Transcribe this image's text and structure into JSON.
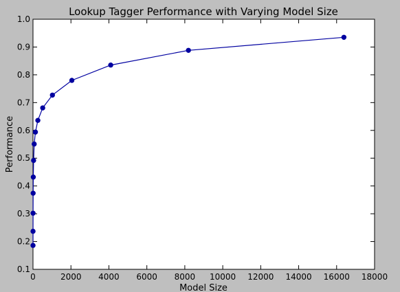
{
  "chart_data": {
    "type": "line",
    "title": "Lookup Tagger Performance with Varying Model Size",
    "xlabel": "Model Size",
    "ylabel": "Performance",
    "xlim": [
      0,
      18000
    ],
    "ylim": [
      0.1,
      1.0
    ],
    "grid": false,
    "legend": "none",
    "xticks": [
      0,
      2000,
      4000,
      6000,
      8000,
      10000,
      12000,
      14000,
      16000,
      18000
    ],
    "yticks": [
      0.1,
      0.2,
      0.3,
      0.4,
      0.5,
      0.6,
      0.7,
      0.8,
      0.9,
      1.0
    ],
    "xtick_labels": [
      "0",
      "2000",
      "4000",
      "6000",
      "8000",
      "10000",
      "12000",
      "14000",
      "16000",
      "18000"
    ],
    "ytick_labels": [
      "0.1",
      "0.2",
      "0.3",
      "0.4",
      "0.5",
      "0.6",
      "0.7",
      "0.8",
      "0.9",
      "1.0"
    ],
    "series": [
      {
        "color": "#0000a0",
        "x": [
          1,
          2,
          4,
          8,
          16,
          32,
          64,
          128,
          256,
          512,
          1024,
          2048,
          4096,
          8192,
          16384
        ],
        "y": [
          0.186,
          0.237,
          0.302,
          0.374,
          0.432,
          0.492,
          0.551,
          0.594,
          0.636,
          0.681,
          0.727,
          0.78,
          0.835,
          0.888,
          0.935
        ]
      }
    ]
  }
}
